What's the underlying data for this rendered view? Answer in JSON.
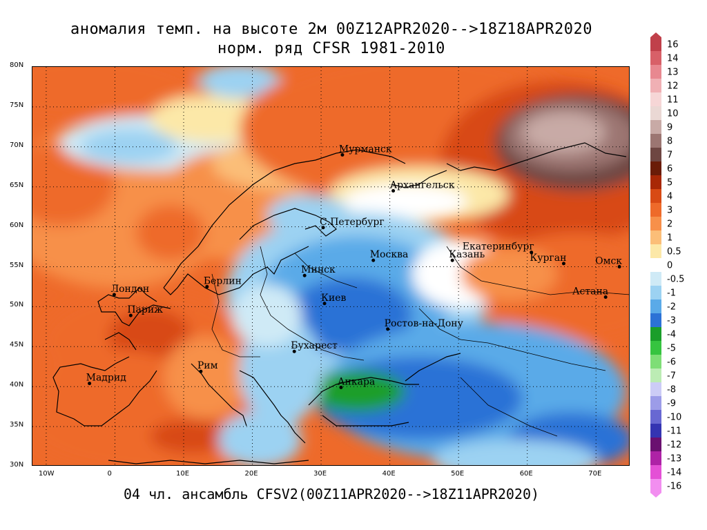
{
  "title_line1": "аномалия темп. на высоте 2м 00Z12APR2020-->18Z18APR2020",
  "title_line2": "норм. ряд CFSR 1981-2010",
  "footer": "04 чл. ансамбль CFSV2(00Z11APR2020-->18Z11APR2020)",
  "map": {
    "lon_range": [
      -12,
      75
    ],
    "lat_range": [
      30,
      80
    ],
    "lat_ticks": [
      "30N",
      "35N",
      "40N",
      "45N",
      "50N",
      "55N",
      "60N",
      "65N",
      "70N",
      "75N",
      "80N"
    ],
    "lon_ticks": [
      "10W",
      "0",
      "10E",
      "20E",
      "30E",
      "40E",
      "50E",
      "60E",
      "70E"
    ],
    "grid": true,
    "cities": [
      {
        "name": "Мурманск",
        "lon": 33.1,
        "lat": 69.0
      },
      {
        "name": "Архангельск",
        "lon": 40.5,
        "lat": 64.5
      },
      {
        "name": "С.Петербург",
        "lon": 30.3,
        "lat": 59.9
      },
      {
        "name": "Москва",
        "lon": 37.6,
        "lat": 55.8
      },
      {
        "name": "Казань",
        "lon": 49.1,
        "lat": 55.8
      },
      {
        "name": "Екатеринбург",
        "lon": 60.6,
        "lat": 56.8
      },
      {
        "name": "Курган",
        "lon": 65.3,
        "lat": 55.4
      },
      {
        "name": "Омск",
        "lon": 73.4,
        "lat": 55.0
      },
      {
        "name": "Астана",
        "lon": 71.4,
        "lat": 51.2
      },
      {
        "name": "Минск",
        "lon": 27.6,
        "lat": 53.9
      },
      {
        "name": "Берлин",
        "lon": 13.4,
        "lat": 52.5
      },
      {
        "name": "Лондон",
        "lon": -0.1,
        "lat": 51.5
      },
      {
        "name": "Париж",
        "lon": 2.3,
        "lat": 48.9
      },
      {
        "name": "Киев",
        "lon": 30.5,
        "lat": 50.4
      },
      {
        "name": "Ростов-на-Дону",
        "lon": 39.7,
        "lat": 47.2
      },
      {
        "name": "Бухарест",
        "lon": 26.1,
        "lat": 44.4
      },
      {
        "name": "Рим",
        "lon": 12.5,
        "lat": 41.9
      },
      {
        "name": "Мадрид",
        "lon": -3.7,
        "lat": 40.4
      },
      {
        "name": "Анкара",
        "lon": 32.9,
        "lat": 39.9
      }
    ]
  },
  "legend": {
    "labels": [
      "16",
      "14",
      "13",
      "12",
      "11",
      "10",
      "9",
      "8",
      "7",
      "6",
      "5",
      "4",
      "3",
      "2",
      "1",
      "0.5",
      "0",
      "-0.5",
      "-1",
      "-2",
      "-3",
      "-4",
      "-5",
      "-6",
      "-7",
      "-8",
      "-9",
      "-10",
      "-11",
      "-12",
      "-13",
      "-14",
      "-16"
    ],
    "colors": [
      "#c0404a",
      "#d86068",
      "#e88890",
      "#f0b0b4",
      "#f6d6d6",
      "#ead8d4",
      "#c8aaa6",
      "#9c7672",
      "#6e4642",
      "#6a1c08",
      "#a82806",
      "#d84a14",
      "#ee6a2a",
      "#f7904a",
      "#fbbe78",
      "#fce8a8",
      "#ffffff",
      "#cfeaf6",
      "#9cd2f2",
      "#5aaae8",
      "#2c72d6",
      "#1a9e2a",
      "#36c440",
      "#7ede76",
      "#bcecb4",
      "#ccccf6",
      "#9c9ce8",
      "#6868d2",
      "#3434b2",
      "#6a1070",
      "#ae22a6",
      "#e450d6",
      "#f28ef0"
    ]
  }
}
